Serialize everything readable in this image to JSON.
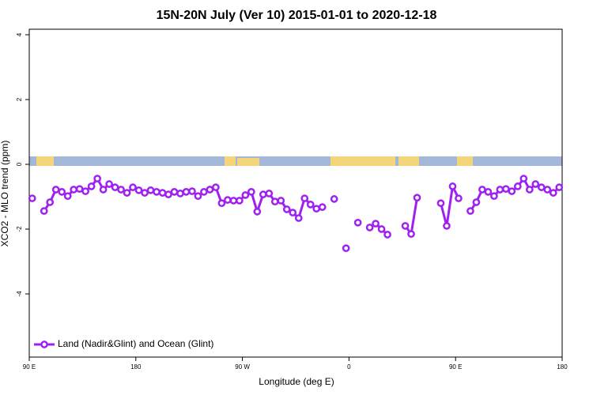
{
  "chart_data": {
    "type": "line",
    "title": "15N-20N July (Ver 10)   2015-01-01 to 2020-12-18",
    "xlabel": "Longitude (deg E)",
    "ylabel": "XCO2 - MLO trend (ppm)",
    "xlim": [
      90,
      540
    ],
    "ylim": [
      -5.95,
      4.17
    ],
    "xticks": [
      {
        "value": 90,
        "label": "90 E"
      },
      180,
      {
        "value": 270,
        "label": "90 W"
      },
      {
        "value": 360,
        "label": "0"
      },
      {
        "value": 450,
        "label": "90 E"
      },
      {
        "value": 540,
        "label": "180"
      }
    ],
    "yticks": [
      -4,
      -2,
      0,
      2,
      4
    ],
    "legend": "bottom-left",
    "x": [
      92.5,
      97.5,
      102.5,
      107.5,
      112.5,
      117.5,
      122.5,
      127.5,
      132.5,
      137.5,
      142.5,
      147.5,
      152.5,
      157.5,
      162.5,
      167.5,
      172.5,
      177.5,
      182.5,
      187.5,
      192.5,
      197.5,
      202.5,
      207.5,
      212.5,
      217.5,
      222.5,
      227.5,
      232.5,
      237.5,
      242.5,
      247.5,
      252.5,
      257.5,
      262.5,
      267.5,
      272.5,
      277.5,
      282.5,
      287.5,
      292.5,
      297.5,
      302.5,
      307.5,
      312.5,
      317.5,
      322.5,
      327.5,
      332.5,
      337.5,
      342.5,
      347.5,
      352.5,
      357.5,
      362.5,
      367.5,
      372.5,
      377.5,
      382.5,
      387.5,
      392.5,
      397.5,
      402.5,
      407.5,
      412.5,
      417.5,
      422.5,
      427.5,
      432.5,
      437.5,
      442.5,
      447.5,
      452.5,
      457.5,
      462.5,
      467.5,
      472.5,
      477.5,
      482.5,
      487.5,
      492.5,
      497.5,
      502.5,
      507.5,
      512.5,
      517.5,
      522.5,
      527.5,
      532.5,
      537.5
    ],
    "series": [
      {
        "name": "Land (Nadir&Glint) and Ocean (Glint)",
        "color": "#a020f0",
        "values": [
          -1.05,
          null,
          -1.44,
          -1.17,
          -0.78,
          -0.85,
          -0.98,
          -0.78,
          -0.76,
          -0.83,
          -0.68,
          -0.44,
          -0.78,
          -0.61,
          -0.71,
          -0.78,
          -0.88,
          -0.71,
          -0.8,
          -0.88,
          -0.8,
          -0.85,
          -0.88,
          -0.93,
          -0.85,
          -0.9,
          -0.85,
          -0.83,
          -0.98,
          -0.85,
          -0.78,
          -0.71,
          -1.2,
          -1.1,
          -1.12,
          -1.12,
          -0.95,
          -0.85,
          -1.46,
          -0.93,
          -0.9,
          -1.15,
          -1.12,
          -1.39,
          -1.49,
          -1.66,
          -1.05,
          -1.24,
          -1.37,
          -1.32,
          null,
          -1.07,
          null,
          -2.59,
          null,
          -1.8,
          null,
          -1.95,
          -1.83,
          -2.0,
          -2.17,
          null,
          null,
          -1.9,
          -2.15,
          -1.03,
          null,
          null,
          null,
          -1.2,
          -1.9,
          -0.68,
          -1.05,
          null,
          -1.44,
          -1.17,
          -0.78,
          -0.85,
          -0.98,
          -0.78,
          -0.76,
          -0.83,
          -0.68,
          -0.44,
          -0.78,
          -0.61,
          -0.71,
          -0.78,
          -0.88,
          -0.71
        ]
      }
    ]
  }
}
